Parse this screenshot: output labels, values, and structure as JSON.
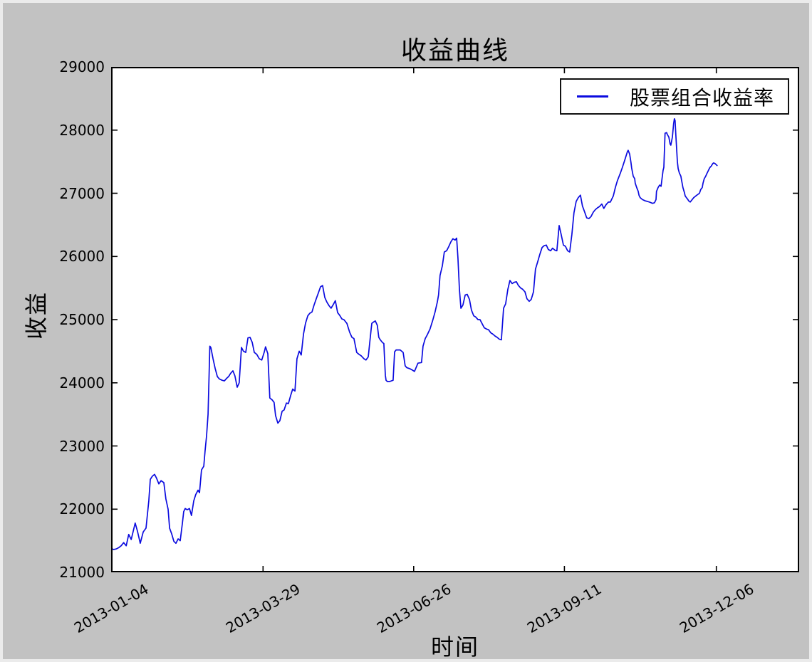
{
  "window": {
    "canvas_color": "#c2c2c2",
    "frame_edge_color": "#ebebeb",
    "plot_background": "#ffffff",
    "axes_frame_color": "#000000"
  },
  "chart_data": {
    "type": "line",
    "title": "收益曲线",
    "xlabel": "时间",
    "ylabel": "收益",
    "grid": false,
    "legend": {
      "position": "upper right",
      "entries": [
        {
          "label": "股票组合收益率",
          "color": "#0b0bdf",
          "marker": "line"
        }
      ]
    },
    "line_color": "#0b0bdf",
    "x_unit": "trading days since 2013-01-04",
    "xlim": [
      0,
      274
    ],
    "ylim": [
      21000,
      29000
    ],
    "y_ticks": [
      21000,
      22000,
      23000,
      24000,
      25000,
      26000,
      27000,
      28000,
      29000
    ],
    "x_ticks": [
      {
        "t": 0,
        "label": "2013-01-04"
      },
      {
        "t": 60.5,
        "label": "2013-03-29"
      },
      {
        "t": 120.5,
        "label": "2013-06-26"
      },
      {
        "t": 180.5,
        "label": "2013-09-11"
      },
      {
        "t": 241,
        "label": "2013-12-06"
      }
    ],
    "series": [
      {
        "name": "股票组合收益率",
        "points": [
          [
            0,
            21380
          ],
          [
            1,
            21360
          ],
          [
            2,
            21370
          ],
          [
            3,
            21390
          ],
          [
            4,
            21420
          ],
          [
            5,
            21470
          ],
          [
            6,
            21420
          ],
          [
            7,
            21600
          ],
          [
            8,
            21520
          ],
          [
            9.6,
            21780
          ],
          [
            10.5,
            21650
          ],
          [
            11.6,
            21460
          ],
          [
            12.8,
            21640
          ],
          [
            13.9,
            21700
          ],
          [
            15,
            22130
          ],
          [
            15.6,
            22470
          ],
          [
            16.4,
            22520
          ],
          [
            17.3,
            22550
          ],
          [
            18.1,
            22490
          ],
          [
            19,
            22400
          ],
          [
            19.9,
            22450
          ],
          [
            21,
            22420
          ],
          [
            21.8,
            22160
          ],
          [
            22.7,
            22000
          ],
          [
            23.3,
            21700
          ],
          [
            24.1,
            21610
          ],
          [
            25,
            21490
          ],
          [
            25.8,
            21460
          ],
          [
            26.7,
            21530
          ],
          [
            27.5,
            21500
          ],
          [
            28.4,
            21780
          ],
          [
            28.9,
            21960
          ],
          [
            29.5,
            22010
          ],
          [
            30.3,
            21990
          ],
          [
            31.2,
            22010
          ],
          [
            32,
            21900
          ],
          [
            32.9,
            22130
          ],
          [
            33.7,
            22230
          ],
          [
            34.6,
            22300
          ],
          [
            35.2,
            22260
          ],
          [
            36,
            22620
          ],
          [
            36.9,
            22680
          ],
          [
            37.4,
            22920
          ],
          [
            38,
            23160
          ],
          [
            38.6,
            23500
          ],
          [
            39.3,
            24580
          ],
          [
            39.7,
            24560
          ],
          [
            40.6,
            24380
          ],
          [
            41.4,
            24230
          ],
          [
            42.3,
            24100
          ],
          [
            43.1,
            24060
          ],
          [
            44.2,
            24040
          ],
          [
            45.1,
            24030
          ],
          [
            46,
            24070
          ],
          [
            46.8,
            24100
          ],
          [
            47.6,
            24150
          ],
          [
            48.5,
            24190
          ],
          [
            49.3,
            24110
          ],
          [
            50.2,
            23930
          ],
          [
            51,
            24000
          ],
          [
            51.9,
            24560
          ],
          [
            52.7,
            24500
          ],
          [
            53.6,
            24480
          ],
          [
            54.5,
            24710
          ],
          [
            55.3,
            24720
          ],
          [
            56.2,
            24640
          ],
          [
            57,
            24480
          ],
          [
            58,
            24450
          ],
          [
            59,
            24380
          ],
          [
            60,
            24360
          ],
          [
            61,
            24490
          ],
          [
            61.5,
            24570
          ],
          [
            62.4,
            24460
          ],
          [
            63.2,
            23760
          ],
          [
            64.1,
            23730
          ],
          [
            64.9,
            23690
          ],
          [
            65.5,
            23480
          ],
          [
            66.4,
            23360
          ],
          [
            67.2,
            23400
          ],
          [
            68.1,
            23550
          ],
          [
            68.9,
            23570
          ],
          [
            69.8,
            23680
          ],
          [
            70.6,
            23670
          ],
          [
            71.5,
            23800
          ],
          [
            72.3,
            23900
          ],
          [
            73.2,
            23870
          ],
          [
            74,
            24380
          ],
          [
            74.9,
            24500
          ],
          [
            75.7,
            24440
          ],
          [
            76.6,
            24770
          ],
          [
            77.4,
            24940
          ],
          [
            78.3,
            25060
          ],
          [
            79.1,
            25100
          ],
          [
            80,
            25120
          ],
          [
            80.8,
            25230
          ],
          [
            81.7,
            25330
          ],
          [
            82.5,
            25420
          ],
          [
            83.4,
            25520
          ],
          [
            84.2,
            25540
          ],
          [
            85.1,
            25350
          ],
          [
            85.9,
            25280
          ],
          [
            86.8,
            25220
          ],
          [
            87.6,
            25180
          ],
          [
            88.5,
            25240
          ],
          [
            89.3,
            25300
          ],
          [
            90.2,
            25110
          ],
          [
            91,
            25070
          ],
          [
            91.9,
            25010
          ],
          [
            92.7,
            25000
          ],
          [
            93.9,
            24940
          ],
          [
            95,
            24800
          ],
          [
            95.9,
            24720
          ],
          [
            96.7,
            24700
          ],
          [
            97.8,
            24480
          ],
          [
            98.7,
            24450
          ],
          [
            99.5,
            24430
          ],
          [
            100.7,
            24380
          ],
          [
            101.5,
            24360
          ],
          [
            102.4,
            24410
          ],
          [
            103.5,
            24830
          ],
          [
            103.8,
            24940
          ],
          [
            104.4,
            24960
          ],
          [
            105.2,
            24980
          ],
          [
            106,
            24910
          ],
          [
            106.6,
            24720
          ],
          [
            107.2,
            24680
          ],
          [
            108,
            24640
          ],
          [
            108.6,
            24620
          ],
          [
            109.2,
            24120
          ],
          [
            109.5,
            24040
          ],
          [
            110,
            24020
          ],
          [
            110.9,
            24020
          ],
          [
            112.3,
            24040
          ],
          [
            112.9,
            24490
          ],
          [
            113.5,
            24520
          ],
          [
            115.1,
            24520
          ],
          [
            116.3,
            24480
          ],
          [
            117.1,
            24270
          ],
          [
            117.7,
            24240
          ],
          [
            119.1,
            24220
          ],
          [
            120,
            24200
          ],
          [
            120.8,
            24180
          ],
          [
            122.2,
            24310
          ],
          [
            123.6,
            24320
          ],
          [
            124.2,
            24580
          ],
          [
            125.1,
            24700
          ],
          [
            125.9,
            24760
          ],
          [
            127,
            24850
          ],
          [
            128,
            24980
          ],
          [
            129,
            25120
          ],
          [
            129.9,
            25280
          ],
          [
            130.4,
            25390
          ],
          [
            131,
            25700
          ],
          [
            131.9,
            25850
          ],
          [
            132.7,
            26070
          ],
          [
            133.6,
            26090
          ],
          [
            134.4,
            26150
          ],
          [
            135.3,
            26230
          ],
          [
            136.1,
            26280
          ],
          [
            137,
            26260
          ],
          [
            137.6,
            26290
          ],
          [
            138.1,
            25980
          ],
          [
            138.7,
            25480
          ],
          [
            139.3,
            25180
          ],
          [
            140.1,
            25230
          ],
          [
            141,
            25390
          ],
          [
            141.8,
            25400
          ],
          [
            142.7,
            25320
          ],
          [
            143.5,
            25150
          ],
          [
            144.4,
            25060
          ],
          [
            145.2,
            25040
          ],
          [
            146.1,
            25000
          ],
          [
            146.9,
            25000
          ],
          [
            147.8,
            24930
          ],
          [
            148.6,
            24870
          ],
          [
            149.5,
            24850
          ],
          [
            150.3,
            24840
          ],
          [
            151.2,
            24790
          ],
          [
            152,
            24770
          ],
          [
            152.9,
            24740
          ],
          [
            153.7,
            24720
          ],
          [
            154.6,
            24690
          ],
          [
            155.4,
            24680
          ],
          [
            156.3,
            25180
          ],
          [
            157.1,
            25250
          ],
          [
            158,
            25480
          ],
          [
            158.8,
            25620
          ],
          [
            159.7,
            25570
          ],
          [
            160.5,
            25590
          ],
          [
            161.4,
            25600
          ],
          [
            162.2,
            25540
          ],
          [
            163.1,
            25500
          ],
          [
            163.9,
            25480
          ],
          [
            164.8,
            25440
          ],
          [
            165.6,
            25330
          ],
          [
            166.5,
            25290
          ],
          [
            167.3,
            25320
          ],
          [
            168.2,
            25440
          ],
          [
            169,
            25800
          ],
          [
            169.9,
            25920
          ],
          [
            170.7,
            26030
          ],
          [
            171.6,
            26140
          ],
          [
            172.4,
            26170
          ],
          [
            173.3,
            26180
          ],
          [
            174.1,
            26110
          ],
          [
            175,
            26090
          ],
          [
            175.8,
            26130
          ],
          [
            176.7,
            26100
          ],
          [
            177.5,
            26090
          ],
          [
            178.4,
            26490
          ],
          [
            179.2,
            26350
          ],
          [
            180.1,
            26180
          ],
          [
            180.9,
            26160
          ],
          [
            181.8,
            26090
          ],
          [
            182.6,
            26070
          ],
          [
            183.5,
            26350
          ],
          [
            184.3,
            26690
          ],
          [
            185.2,
            26870
          ],
          [
            186,
            26930
          ],
          [
            186.9,
            26970
          ],
          [
            187.7,
            26800
          ],
          [
            188.6,
            26700
          ],
          [
            189.4,
            26610
          ],
          [
            190.3,
            26600
          ],
          [
            191.1,
            26630
          ],
          [
            192,
            26700
          ],
          [
            192.8,
            26740
          ],
          [
            193.7,
            26770
          ],
          [
            194.5,
            26790
          ],
          [
            195.4,
            26830
          ],
          [
            196.2,
            26760
          ],
          [
            197.1,
            26820
          ],
          [
            198,
            26860
          ],
          [
            198.8,
            26860
          ],
          [
            200,
            26960
          ],
          [
            200.8,
            27090
          ],
          [
            201.6,
            27200
          ],
          [
            202.8,
            27320
          ],
          [
            203.6,
            27410
          ],
          [
            204.5,
            27520
          ],
          [
            205.6,
            27660
          ],
          [
            205.9,
            27680
          ],
          [
            206.5,
            27620
          ],
          [
            207,
            27490
          ],
          [
            207.3,
            27400
          ],
          [
            207.9,
            27270
          ],
          [
            208.5,
            27230
          ],
          [
            208.7,
            27160
          ],
          [
            209.3,
            27090
          ],
          [
            209.9,
            27030
          ],
          [
            210.2,
            26970
          ],
          [
            210.7,
            26930
          ],
          [
            211.3,
            26910
          ],
          [
            211.6,
            26900
          ],
          [
            212.7,
            26880
          ],
          [
            213.6,
            26870
          ],
          [
            214.4,
            26860
          ],
          [
            215.6,
            26840
          ],
          [
            216.4,
            26850
          ],
          [
            217,
            26900
          ],
          [
            217.2,
            27030
          ],
          [
            217.8,
            27090
          ],
          [
            218.4,
            27130
          ],
          [
            219,
            27110
          ],
          [
            219.8,
            27360
          ],
          [
            220.1,
            27410
          ],
          [
            220.6,
            27950
          ],
          [
            221.2,
            27960
          ],
          [
            221.5,
            27930
          ],
          [
            222.1,
            27890
          ],
          [
            222.6,
            27780
          ],
          [
            222.9,
            27760
          ],
          [
            223.5,
            27890
          ],
          [
            224,
            28100
          ],
          [
            224.3,
            28180
          ],
          [
            224.6,
            28150
          ],
          [
            224.9,
            27910
          ],
          [
            225.5,
            27500
          ],
          [
            225.8,
            27390
          ],
          [
            226.3,
            27320
          ],
          [
            226.9,
            27270
          ],
          [
            227.2,
            27200
          ],
          [
            227.7,
            27090
          ],
          [
            228.3,
            27010
          ],
          [
            228.6,
            26960
          ],
          [
            229.1,
            26930
          ],
          [
            229.7,
            26900
          ],
          [
            230,
            26880
          ],
          [
            230.6,
            26860
          ],
          [
            232,
            26930
          ],
          [
            232.9,
            26960
          ],
          [
            234.3,
            27000
          ],
          [
            234.8,
            27060
          ],
          [
            235.4,
            27090
          ],
          [
            235.7,
            27160
          ],
          [
            236.2,
            27230
          ],
          [
            236.8,
            27270
          ],
          [
            237.1,
            27300
          ],
          [
            237.6,
            27340
          ],
          [
            238.2,
            27390
          ],
          [
            238.5,
            27410
          ],
          [
            239,
            27430
          ],
          [
            239.6,
            27470
          ],
          [
            239.9,
            27480
          ],
          [
            240.5,
            27470
          ],
          [
            241.3,
            27440
          ]
        ]
      }
    ]
  }
}
